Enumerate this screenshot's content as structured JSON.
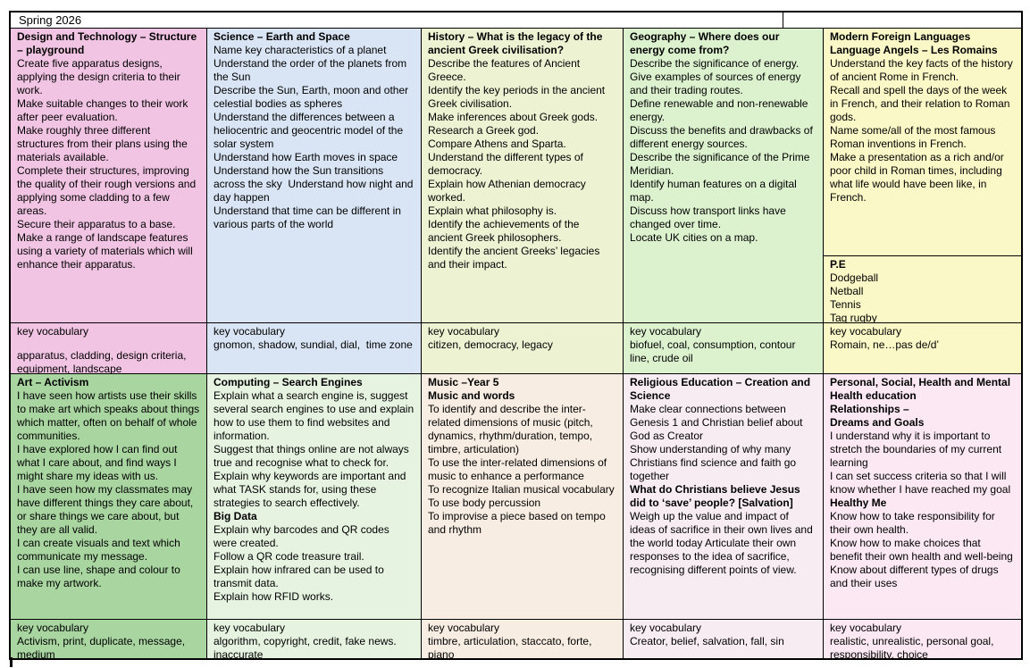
{
  "header": {
    "title": "Spring 2026"
  },
  "vocab_label": "key vocabulary",
  "columns": [
    {
      "top": {
        "color": "#F2C4E3",
        "blocks": [
          {
            "b": true,
            "t": "Design and Technology – Structure – playground"
          },
          {
            "b": false,
            "t": "Create five apparatus designs, applying the design criteria to their work."
          },
          {
            "b": false,
            "t": "Make suitable changes to their work after peer evaluation."
          },
          {
            "b": false,
            "t": "Make roughly three different structures from their plans using the materials available."
          },
          {
            "b": false,
            "t": "Complete their structures, improving the quality of their rough versions and applying some cladding to a few areas."
          },
          {
            "b": false,
            "t": "Secure their apparatus to a base."
          },
          {
            "b": false,
            "t": "Make a range of landscape features using a variety of materials which will enhance their apparatus."
          }
        ],
        "vocab_label": "key vocabulary",
        "vocab_words": "apparatus, cladding, design criteria, equipment, landscape"
      },
      "bottom": {
        "color": "#A8D5A0",
        "blocks": [
          {
            "b": true,
            "t": "Art – Activism"
          },
          {
            "b": false,
            "t": "I have seen how artists use their skills to make art which speaks about things which matter, often on behalf of whole communities."
          },
          {
            "b": false,
            "t": "I have explored how I can find out what I care about, and find ways I might share my ideas with us."
          },
          {
            "b": false,
            "t": "I have seen how my classmates may have different things they care about, or share things we care about, but they are all valid."
          },
          {
            "b": false,
            "t": "I can create visuals and text which communicate my message."
          },
          {
            "b": false,
            "t": "I can use line, shape and colour to make my artwork."
          }
        ],
        "vocab_label": "key vocabulary",
        "vocab_words": "Activism, print, duplicate, message, medium"
      }
    },
    {
      "top": {
        "color": "#D9E5F4",
        "blocks": [
          {
            "b": true,
            "t": "Science – Earth and Space"
          },
          {
            "b": false,
            "t": "Name key characteristics of a planet"
          },
          {
            "b": false,
            "t": "Understand the order of the planets from the Sun"
          },
          {
            "b": false,
            "t": "Describe the Sun, Earth, moon and other celestial bodies as spheres"
          },
          {
            "b": false,
            "t": "Understand the differences between a heliocentric and geocentric model of the solar system"
          },
          {
            "b": false,
            "t": "Understand how Earth moves in space"
          },
          {
            "b": false,
            "t": "Understand how the Sun transitions across the sky  Understand how night and day happen"
          },
          {
            "b": false,
            "t": "Understand that time can be different in various parts of the world"
          }
        ],
        "vocab_label": "key vocabulary",
        "vocab_words": "gnomon, shadow, sundial, dial,  time zone"
      },
      "bottom": {
        "color": "#E7F3E1",
        "blocks": [
          {
            "b": true,
            "t": "Computing – Search Engines"
          },
          {
            "b": false,
            "t": "Explain what a search engine is, suggest several search engines to use and explain how to use them to find websites and information."
          },
          {
            "b": false,
            "t": "Suggest that things online are not always true and recognise what to check for."
          },
          {
            "b": false,
            "t": "Explain why keywords are important and what TASK stands for, using these strategies to search effectively."
          },
          {
            "b": true,
            "t": "Big Data"
          },
          {
            "b": false,
            "t": "Explain why barcodes and QR codes were created."
          },
          {
            "b": false,
            "t": "Follow a QR code treasure trail."
          },
          {
            "b": false,
            "t": "Explain how infrared can be used to transmit data."
          },
          {
            "b": false,
            "t": "Explain how RFID works."
          }
        ],
        "vocab_label": "key vocabulary",
        "vocab_words": "algorithm, copyright, credit, fake news. inaccurate"
      }
    },
    {
      "top": {
        "color": "#EDF2D2",
        "blocks": [
          {
            "b": true,
            "t": "History – What is the legacy of the ancient Greek civilisation?"
          },
          {
            "b": false,
            "t": "Describe the features of Ancient Greece."
          },
          {
            "b": false,
            "t": "Identify the key periods in the ancient Greek civilisation."
          },
          {
            "b": false,
            "t": "Make inferences about Greek gods."
          },
          {
            "b": false,
            "t": "Research a Greek god."
          },
          {
            "b": false,
            "t": "Compare Athens and Sparta."
          },
          {
            "b": false,
            "t": "Understand the different types of democracy."
          },
          {
            "b": false,
            "t": "Explain how Athenian democracy worked."
          },
          {
            "b": false,
            "t": "Explain what philosophy is."
          },
          {
            "b": false,
            "t": "Identify the achievements of the ancient Greek philosophers."
          },
          {
            "b": false,
            "t": "Identify the ancient Greeks’ legacies and their impact."
          }
        ],
        "vocab_label": "key vocabulary",
        "vocab_words": "citizen, democracy, legacy"
      },
      "bottom": {
        "color": "#F7EDE2",
        "blocks": [
          {
            "b": true,
            "t": "Music –Year 5"
          },
          {
            "b": true,
            "t": "Music and words"
          },
          {
            "b": false,
            "t": "To identify and describe the inter-related dimensions of music (pitch, dynamics, rhythm/duration, tempo, timbre, articulation)"
          },
          {
            "b": false,
            "t": "To use the inter-related dimensions of music to enhance a performance"
          },
          {
            "b": false,
            "t": "To recognize Italian musical vocabulary"
          },
          {
            "b": false,
            "t": "To use body percussion"
          },
          {
            "b": false,
            "t": "To improvise a piece based on tempo and rhythm"
          }
        ],
        "vocab_label": "key vocabulary",
        "vocab_words": "timbre, articulation, staccato, forte, piano"
      }
    },
    {
      "top": {
        "color": "#DCF2CE",
        "blocks": [
          {
            "b": true,
            "t": "Geography – Where does our energy come from?"
          },
          {
            "b": false,
            "t": "Describe the significance of energy."
          },
          {
            "b": false,
            "t": "Give examples of sources of energy and their trading routes."
          },
          {
            "b": false,
            "t": "Define renewable and non-renewable energy."
          },
          {
            "b": false,
            "t": "Discuss the benefits and drawbacks of different energy sources."
          },
          {
            "b": false,
            "t": "Describe the significance of the Prime Meridian."
          },
          {
            "b": false,
            "t": "Identify human features on a digital map."
          },
          {
            "b": false,
            "t": "Discuss how transport links have changed over time."
          },
          {
            "b": false,
            "t": "Locate UK cities on a map."
          }
        ],
        "vocab_label": "key vocabulary",
        "vocab_words": "biofuel, coal, consumption, contour line, crude oil"
      },
      "bottom": {
        "color": "#F6ECF2",
        "blocks": [
          {
            "b": true,
            "t": "Religious Education – Creation and Science"
          },
          {
            "b": false,
            "t": "Make clear connections between Genesis 1 and Christian belief about God as Creator"
          },
          {
            "b": false,
            "t": "Show understanding of why many Christians find science and faith go together"
          },
          {
            "b": true,
            "t": "What do Christians believe Jesus did to ‘save’ people? [Salvation]"
          },
          {
            "b": false,
            "t": "Weigh up the value and impact of ideas of sacrifice in their own lives and the world today Articulate their own responses to the idea of sacrifice, recognising different points of view."
          }
        ],
        "vocab_label": "key vocabulary",
        "vocab_words": "Creator, belief, salvation, fall, sin"
      }
    },
    {
      "top": {
        "color": "#FAF8C6",
        "blocks": [
          {
            "b": true,
            "t": "Modern Foreign Languages Language Angels – Les Romains"
          },
          {
            "b": false,
            "t": "Understand the key facts of the history of ancient Rome in French."
          },
          {
            "b": false,
            "t": "Recall and spell the days of the week in French, and their relation to Roman gods."
          },
          {
            "b": false,
            "t": "Name some/all of the most famous Roman inventions in French."
          },
          {
            "b": false,
            "t": "Make a presentation as a rich and/or poor child in Roman times, including what life would have been like, in French."
          }
        ],
        "vocab_label": "key vocabulary",
        "vocab_words": "Romain, ne…pas de/d’"
      },
      "pe": {
        "blocks": [
          {
            "b": true,
            "t": "P.E"
          },
          {
            "b": false,
            "t": "Dodgeball"
          },
          {
            "b": false,
            "t": "Netball"
          },
          {
            "b": false,
            "t": "Tennis"
          },
          {
            "b": false,
            "t": "Tag rugby"
          }
        ]
      },
      "bottom": {
        "color": "#FBE8F2",
        "blocks": [
          {
            "b": true,
            "t": "Personal, Social, Health and Mental Health education"
          },
          {
            "b": true,
            "t": "Relationships –"
          },
          {
            "b": true,
            "t": "Dreams and Goals"
          },
          {
            "b": false,
            "t": "I understand why it is important to stretch the boundaries of my current learning"
          },
          {
            "b": false,
            "t": "I can set success criteria so that I will know whether I have reached my goal"
          },
          {
            "b": true,
            "t": "Healthy Me"
          },
          {
            "b": false,
            "t": "Know how to take responsibility for their own health."
          },
          {
            "b": false,
            "t": "Know how to make choices that benefit their own health and well-being"
          },
          {
            "b": false,
            "t": "Know about different types of drugs and their uses"
          }
        ],
        "vocab_label": "key vocabulary",
        "vocab_words": "realistic, unrealistic, personal goal, responsibility, choice"
      }
    }
  ]
}
